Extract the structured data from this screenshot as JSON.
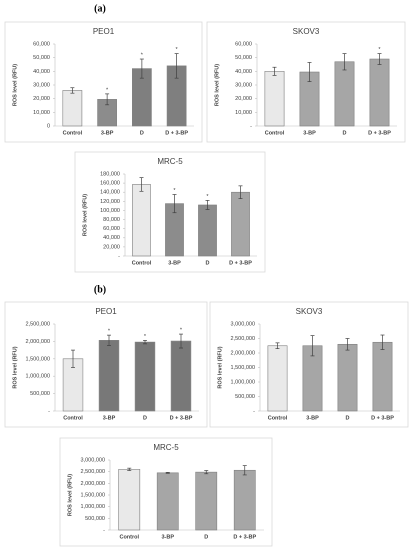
{
  "panels": [
    "(a)",
    "(b)"
  ],
  "chart_data": [
    {
      "type": "bar",
      "title": "PEO1",
      "y_label": "ROS level (RFU)",
      "categories": [
        "Control",
        "3-BP",
        "D",
        "D + 3-BP"
      ],
      "values": [
        26000,
        19500,
        42000,
        44000
      ],
      "errors": [
        2000,
        4000,
        7000,
        9000
      ],
      "significance": [
        null,
        "*",
        "*",
        "*"
      ],
      "colors": [
        "#f2f2f2",
        "#8c8c8c",
        "#7f7f7f",
        "#7f7f7f"
      ],
      "patterned": [
        true,
        false,
        false,
        false
      ],
      "ylim": [
        0,
        60000
      ],
      "yticks": [
        0,
        {
          "value": 10000,
          "label": "10,000"
        },
        {
          "value": 20000,
          "label": "20,000"
        },
        {
          "value": 30000,
          "label": "30,000"
        },
        {
          "value": 40000,
          "label": "40,000"
        },
        {
          "value": 50000,
          "label": "50,000"
        },
        {
          "value": 60000,
          "label": "60,000"
        }
      ]
    },
    {
      "type": "bar",
      "title": "SKOV3",
      "y_label": "ROS level (RFU)",
      "categories": [
        "Control",
        "3-BP",
        "D",
        "D + 3-BP"
      ],
      "values": [
        40000,
        39500,
        47000,
        49000
      ],
      "errors": [
        3000,
        7000,
        6000,
        4000
      ],
      "significance": [
        null,
        null,
        null,
        "*"
      ],
      "colors": [
        "#f2f2f2",
        "#a6a6a6",
        "#a6a6a6",
        "#a6a6a6"
      ],
      "patterned": [
        true,
        false,
        false,
        false
      ],
      "ylim": [
        0,
        60000
      ],
      "yticks": [
        {
          "value": 0,
          "label": "-"
        },
        {
          "value": 10000,
          "label": "10,000"
        },
        {
          "value": 20000,
          "label": "20,000"
        },
        {
          "value": 30000,
          "label": "30,000"
        },
        {
          "value": 40000,
          "label": "40,000"
        },
        {
          "value": 50000,
          "label": "50,000"
        },
        {
          "value": 60000,
          "label": "60,000"
        }
      ]
    },
    {
      "type": "bar",
      "title": "MRC-5",
      "y_label": "ROS level (RFU)",
      "categories": [
        "Control",
        "3-BP",
        "D",
        "D + 3-BP"
      ],
      "values": [
        157000,
        115000,
        112000,
        140000
      ],
      "errors": [
        15000,
        20000,
        10000,
        14000
      ],
      "significance": [
        null,
        "*",
        "*",
        null
      ],
      "colors": [
        "#f2f2f2",
        "#8c8c8c",
        "#8c8c8c",
        "#a6a6a6"
      ],
      "patterned": [
        true,
        false,
        false,
        false
      ],
      "ylim": [
        0,
        180000
      ],
      "yticks": [
        {
          "value": 0,
          "label": "-"
        },
        {
          "value": 20000,
          "label": "20,000"
        },
        {
          "value": 40000,
          "label": "40,000"
        },
        {
          "value": 60000,
          "label": "60,000"
        },
        {
          "value": 80000,
          "label": "80,000"
        },
        {
          "value": 100000,
          "label": "100,000"
        },
        {
          "value": 120000,
          "label": "120,000"
        },
        {
          "value": 140000,
          "label": "140,000"
        },
        {
          "value": 160000,
          "label": "160,000"
        },
        {
          "value": 180000,
          "label": "180,000"
        }
      ]
    },
    {
      "type": "bar",
      "title": "PEO1",
      "y_label": "ROS level (RFU)",
      "categories": [
        "Control",
        "3-BP",
        "D",
        "D + 3-BP"
      ],
      "values": [
        1500000,
        2030000,
        1980000,
        2010000
      ],
      "errors": [
        250000,
        150000,
        50000,
        200000
      ],
      "significance": [
        null,
        "*",
        "*",
        "*"
      ],
      "colors": [
        "#f2f2f2",
        "#7f7f7f",
        "#7f7f7f",
        "#7f7f7f"
      ],
      "patterned": [
        true,
        true,
        true,
        true
      ],
      "ylim": [
        0,
        2500000
      ],
      "yticks": [
        {
          "value": 0,
          "label": "-"
        },
        {
          "value": 500000,
          "label": "500,000"
        },
        {
          "value": 1000000,
          "label": "1,000,000"
        },
        {
          "value": 1500000,
          "label": "1,500,000"
        },
        {
          "value": 2000000,
          "label": "2,000,000"
        },
        {
          "value": 2500000,
          "label": "2,500,000"
        }
      ]
    },
    {
      "type": "bar",
      "title": "SKOV3",
      "y_label": "ROS level (RFU)",
      "categories": [
        "Control",
        "3-BP",
        "D",
        "D + 3-BP"
      ],
      "values": [
        2250000,
        2250000,
        2300000,
        2370000
      ],
      "errors": [
        100000,
        350000,
        200000,
        250000
      ],
      "significance": [
        null,
        null,
        null,
        null
      ],
      "colors": [
        "#f2f2f2",
        "#a6a6a6",
        "#a6a6a6",
        "#a6a6a6"
      ],
      "patterned": [
        true,
        false,
        false,
        false
      ],
      "ylim": [
        0,
        3000000
      ],
      "yticks": [
        {
          "value": 0,
          "label": "-"
        },
        {
          "value": 500000,
          "label": "500,000"
        },
        {
          "value": 1000000,
          "label": "1,000,000"
        },
        {
          "value": 1500000,
          "label": "1,500,000"
        },
        {
          "value": 2000000,
          "label": "2,000,000"
        },
        {
          "value": 2500000,
          "label": "2,500,000"
        },
        {
          "value": 3000000,
          "label": "3,000,000"
        }
      ]
    },
    {
      "type": "bar",
      "title": "MRC-5",
      "y_label": "ROS level (RFU)",
      "categories": [
        "Control",
        "3-BP",
        "D",
        "D + 3-BP"
      ],
      "values": [
        2600000,
        2450000,
        2480000,
        2560000
      ],
      "errors": [
        50000,
        20000,
        70000,
        200000
      ],
      "significance": [
        null,
        null,
        null,
        null
      ],
      "colors": [
        "#f2f2f2",
        "#a6a6a6",
        "#a6a6a6",
        "#a6a6a6"
      ],
      "patterned": [
        true,
        false,
        false,
        false
      ],
      "ylim": [
        0,
        3000000
      ],
      "yticks": [
        {
          "value": 0,
          "label": "-"
        },
        {
          "value": 500000,
          "label": "500,000"
        },
        {
          "value": 1000000,
          "label": "1,000,000"
        },
        {
          "value": 1500000,
          "label": "1,500,000"
        },
        {
          "value": 2000000,
          "label": "2,000,000"
        },
        {
          "value": 2500000,
          "label": "2,500,000"
        },
        {
          "value": 3000000,
          "label": "3,000,000"
        }
      ]
    }
  ]
}
